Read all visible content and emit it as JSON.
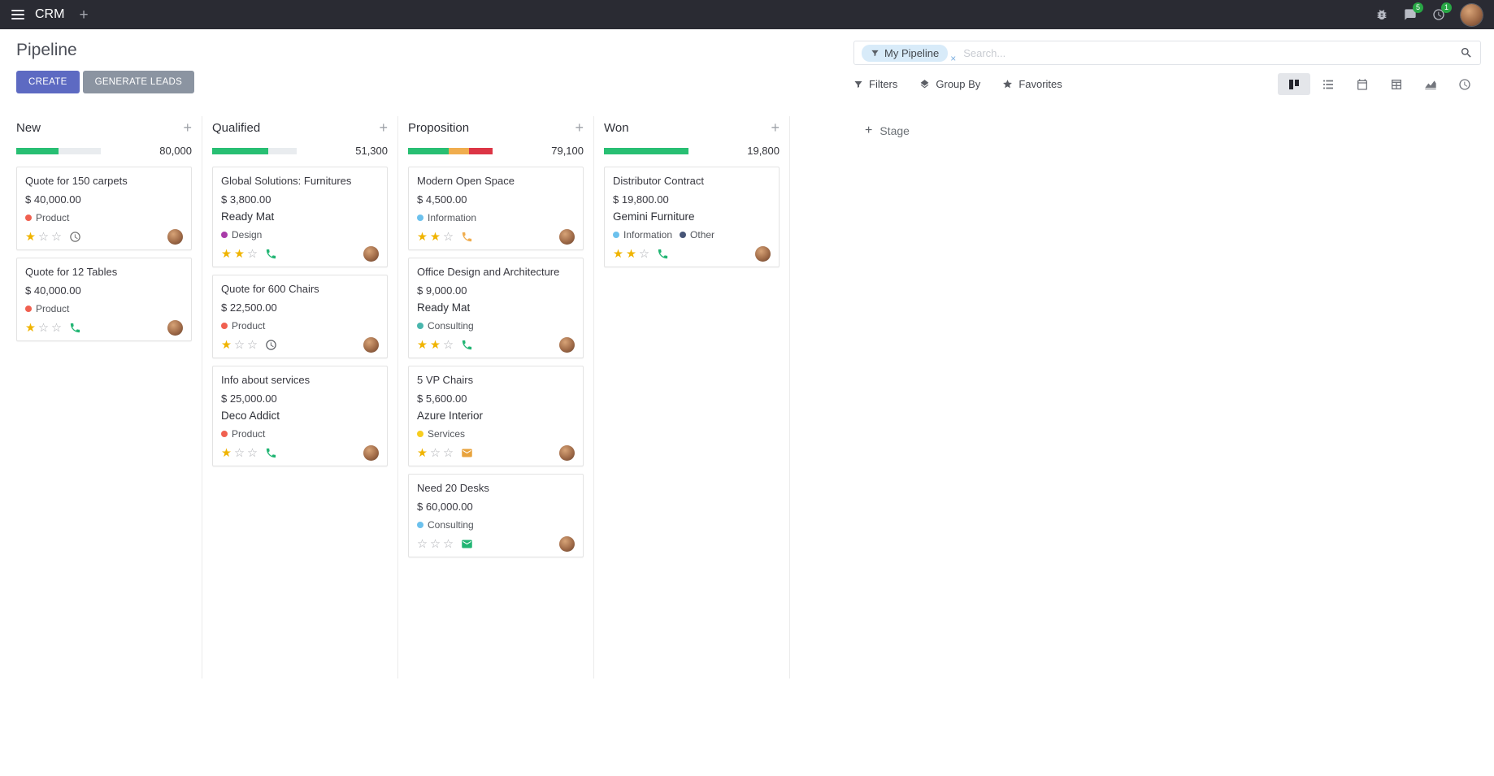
{
  "topbar": {
    "app_name": "CRM",
    "messages_badge": "5",
    "activities_badge": "1"
  },
  "control_panel": {
    "title": "Pipeline",
    "create_label": "CREATE",
    "generate_leads_label": "GENERATE LEADS",
    "filters_label": "Filters",
    "group_by_label": "Group By",
    "favorites_label": "Favorites",
    "search": {
      "facet": "My Pipeline",
      "placeholder": "Search..."
    }
  },
  "colors": {
    "primary": "#5d6ac2",
    "progress_green": "#28bf73",
    "progress_yellow": "#f0ad4e",
    "progress_red": "#dc3545",
    "star_gold": "#f0b400",
    "badge_green": "#28a745"
  },
  "kanban": {
    "add_stage_label": "Stage",
    "columns": [
      {
        "name": "New",
        "total": "80,000",
        "progress": [
          {
            "color": "#28bf73",
            "pct": 50
          }
        ],
        "cards": [
          {
            "title": "Quote for 150 carpets",
            "amount": "$ 40,000.00",
            "company": "",
            "tags": [
              {
                "label": "Product",
                "color": "#f06050"
              }
            ],
            "stars": 1,
            "activity": {
              "type": "clock",
              "color": "#6e6e6e"
            }
          },
          {
            "title": "Quote for 12 Tables",
            "amount": "$ 40,000.00",
            "company": "",
            "tags": [
              {
                "label": "Product",
                "color": "#f06050"
              }
            ],
            "stars": 1,
            "activity": {
              "type": "phone",
              "color": "#21b573"
            }
          }
        ]
      },
      {
        "name": "Qualified",
        "total": "51,300",
        "progress": [
          {
            "color": "#28bf73",
            "pct": 66
          }
        ],
        "cards": [
          {
            "title": "Global Solutions: Furnitures",
            "amount": "$ 3,800.00",
            "company": "Ready Mat",
            "tags": [
              {
                "label": "Design",
                "color": "#a93ba9"
              }
            ],
            "stars": 2,
            "activity": {
              "type": "phone",
              "color": "#21b573"
            }
          },
          {
            "title": "Quote for 600 Chairs",
            "amount": "$ 22,500.00",
            "company": "",
            "tags": [
              {
                "label": "Product",
                "color": "#f06050"
              }
            ],
            "stars": 1,
            "activity": {
              "type": "clock",
              "color": "#55585e"
            }
          },
          {
            "title": "Info about services",
            "amount": "$ 25,000.00",
            "company": "Deco Addict",
            "tags": [
              {
                "label": "Product",
                "color": "#f06050"
              }
            ],
            "stars": 1,
            "activity": {
              "type": "phone",
              "color": "#21b573"
            }
          }
        ]
      },
      {
        "name": "Proposition",
        "total": "79,100",
        "progress": [
          {
            "color": "#28bf73",
            "pct": 48
          },
          {
            "color": "#f0ad4e",
            "pct": 24
          },
          {
            "color": "#dc3545",
            "pct": 28
          }
        ],
        "cards": [
          {
            "title": "Modern Open Space",
            "amount": "$ 4,500.00",
            "company": "",
            "tags": [
              {
                "label": "Information",
                "color": "#6cc1ed"
              }
            ],
            "stars": 2,
            "activity": {
              "type": "phone",
              "color": "#f0ad4e"
            }
          },
          {
            "title": "Office Design and Architecture",
            "amount": "$ 9,000.00",
            "company": "Ready Mat",
            "tags": [
              {
                "label": "Consulting",
                "color": "#49b6ad"
              }
            ],
            "stars": 2,
            "activity": {
              "type": "phone",
              "color": "#21b573"
            }
          },
          {
            "title": "5 VP Chairs",
            "amount": "$ 5,600.00",
            "company": "Azure Interior",
            "tags": [
              {
                "label": "Services",
                "color": "#f7cd1f"
              }
            ],
            "stars": 1,
            "activity": {
              "type": "envelope",
              "color": "#e8a33d"
            }
          },
          {
            "title": "Need 20 Desks",
            "amount": "$ 60,000.00",
            "company": "",
            "tags": [
              {
                "label": "Consulting",
                "color": "#6cc1ed"
              }
            ],
            "stars": 0,
            "activity": {
              "type": "envelope",
              "color": "#21b573"
            }
          }
        ]
      },
      {
        "name": "Won",
        "total": "19,800",
        "progress": [
          {
            "color": "#28bf73",
            "pct": 100
          }
        ],
        "cards": [
          {
            "title": "Distributor Contract",
            "amount": "$ 19,800.00",
            "company": "Gemini Furniture",
            "tags": [
              {
                "label": "Information",
                "color": "#6cc1ed"
              },
              {
                "label": "Other",
                "color": "#475577"
              }
            ],
            "stars": 2,
            "activity": {
              "type": "phone",
              "color": "#21b573"
            }
          }
        ]
      }
    ]
  }
}
